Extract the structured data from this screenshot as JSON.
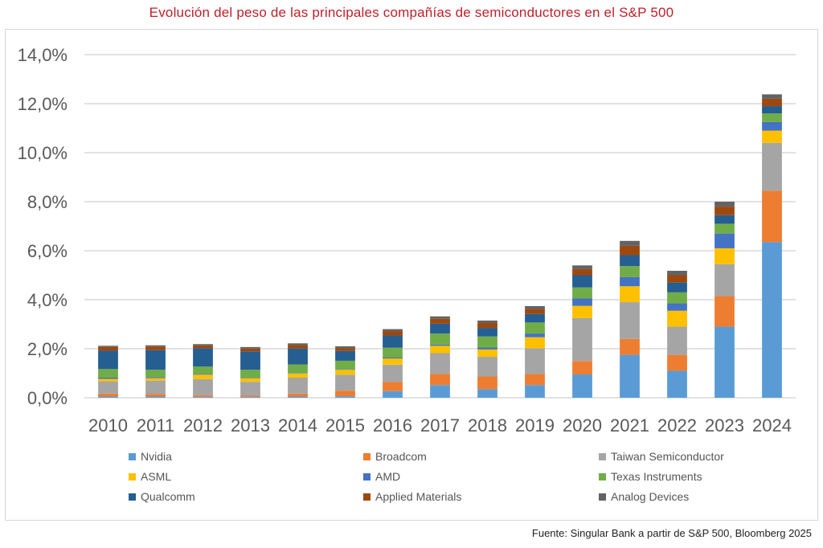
{
  "title": "Evolución del peso de las principales compañías de semiconductores en el S&P 500",
  "source": "Fuente: Singular Bank a partir de S&P 500, Bloomberg 2025",
  "chart_data": {
    "type": "bar",
    "stacked": true,
    "categories": [
      "2010",
      "2011",
      "2012",
      "2013",
      "2014",
      "2015",
      "2016",
      "2017",
      "2018",
      "2019",
      "2020",
      "2021",
      "2022",
      "2023",
      "2024"
    ],
    "ylim": [
      0,
      14
    ],
    "yticks": [
      "0,0%",
      "2,0%",
      "4,0%",
      "6,0%",
      "8,0%",
      "10,0%",
      "12,0%",
      "14,0%"
    ],
    "grid": true,
    "legend_position": "bottom",
    "series": [
      {
        "name": "Nvidia",
        "color": "#5b9bd5",
        "values": [
          0.05,
          0.05,
          0.04,
          0.04,
          0.05,
          0.06,
          0.27,
          0.52,
          0.35,
          0.52,
          0.95,
          1.75,
          1.1,
          2.9,
          6.35
        ]
      },
      {
        "name": "Broadcom",
        "color": "#ed7d31",
        "values": [
          0.12,
          0.1,
          0.07,
          0.06,
          0.12,
          0.23,
          0.38,
          0.45,
          0.52,
          0.45,
          0.55,
          0.65,
          0.65,
          1.25,
          2.1
        ]
      },
      {
        "name": "Taiwan Semiconductor",
        "color": "#a5a5a5",
        "values": [
          0.5,
          0.55,
          0.65,
          0.55,
          0.65,
          0.65,
          0.7,
          0.85,
          0.8,
          1.05,
          1.75,
          1.5,
          1.15,
          1.3,
          1.95
        ]
      },
      {
        "name": "ASML",
        "color": "#ffc000",
        "values": [
          0.1,
          0.1,
          0.18,
          0.15,
          0.17,
          0.2,
          0.25,
          0.3,
          0.3,
          0.45,
          0.5,
          0.65,
          0.65,
          0.65,
          0.5
        ]
      },
      {
        "name": "AMD",
        "color": "#4472c4",
        "values": [
          0.05,
          0.04,
          0.03,
          0.02,
          0.02,
          0.02,
          0.04,
          0.05,
          0.08,
          0.15,
          0.3,
          0.37,
          0.3,
          0.6,
          0.35
        ]
      },
      {
        "name": "Texas Instruments",
        "color": "#70ad47",
        "values": [
          0.35,
          0.3,
          0.3,
          0.32,
          0.35,
          0.35,
          0.4,
          0.45,
          0.45,
          0.45,
          0.45,
          0.45,
          0.45,
          0.4,
          0.35
        ]
      },
      {
        "name": "Qualcomm",
        "color": "#255e91",
        "values": [
          0.75,
          0.8,
          0.75,
          0.75,
          0.65,
          0.4,
          0.5,
          0.4,
          0.35,
          0.35,
          0.5,
          0.45,
          0.4,
          0.35,
          0.3
        ]
      },
      {
        "name": "Applied Materials",
        "color": "#9e480e",
        "values": [
          0.15,
          0.15,
          0.12,
          0.12,
          0.15,
          0.12,
          0.18,
          0.2,
          0.2,
          0.2,
          0.25,
          0.38,
          0.3,
          0.35,
          0.3
        ]
      },
      {
        "name": "Analog Devices",
        "color": "#636363",
        "values": [
          0.05,
          0.05,
          0.05,
          0.06,
          0.06,
          0.07,
          0.08,
          0.1,
          0.1,
          0.12,
          0.15,
          0.2,
          0.18,
          0.2,
          0.18
        ]
      }
    ]
  }
}
